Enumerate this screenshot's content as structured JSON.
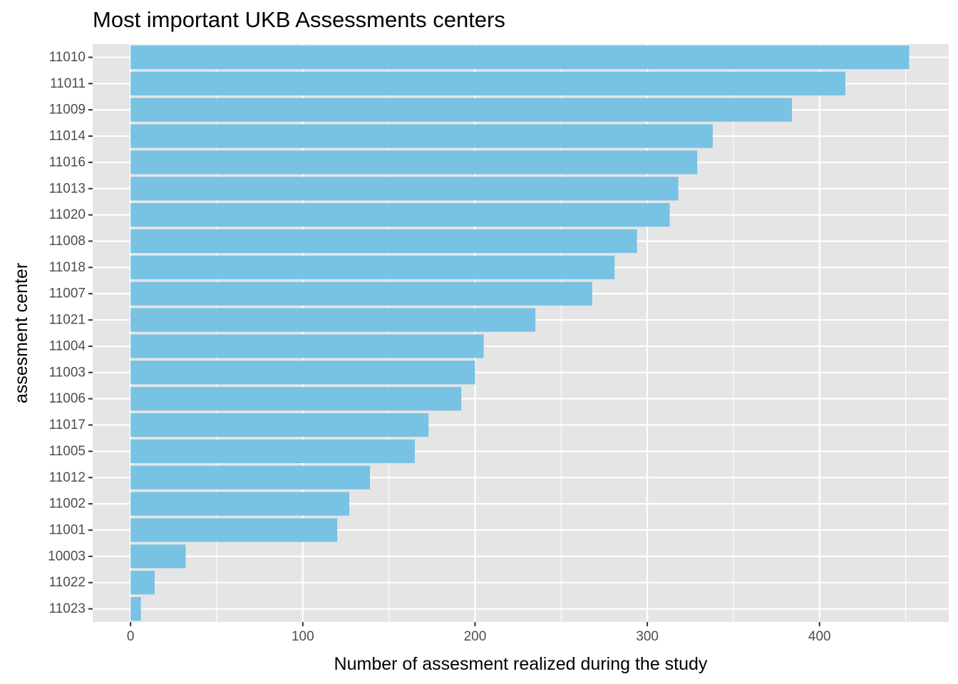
{
  "chart_data": {
    "type": "bar",
    "orientation": "horizontal",
    "title": "Most important UKB Assessments centers",
    "xlabel": "Number of assesment realized during the study",
    "ylabel": "assesment center",
    "categories": [
      "11010",
      "11011",
      "11009",
      "11014",
      "11016",
      "11013",
      "11020",
      "11008",
      "11018",
      "11007",
      "11021",
      "11004",
      "11003",
      "11006",
      "11017",
      "11005",
      "11012",
      "11002",
      "11001",
      "10003",
      "11022",
      "11023"
    ],
    "values": [
      452,
      415,
      384,
      338,
      329,
      318,
      313,
      294,
      281,
      268,
      235,
      205,
      200,
      192,
      173,
      165,
      139,
      127,
      120,
      32,
      14,
      6
    ],
    "xlim": [
      -22,
      475
    ],
    "xticks": [
      0,
      100,
      200,
      300,
      400
    ],
    "grid": true,
    "bar_color": "#78c2e4",
    "panel_background": "#e5e5e5"
  }
}
